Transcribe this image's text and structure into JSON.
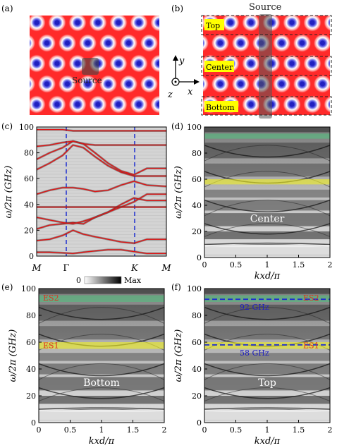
{
  "panel_labels": [
    "(a)",
    "(b)",
    "(c)",
    "(d)",
    "(e)",
    "(f)"
  ],
  "colors": {
    "lattice_bg": "#ff2a2a",
    "spot_center": "#2b2bd8",
    "band_line": "#e01515",
    "highlight_green": "#55c080",
    "highlight_yellow": "#f0f020",
    "dashed_blue": "#1f2fd0",
    "es_label": "#e03020",
    "freq_label": "#2020c0",
    "region_label_bg": "#ffff00"
  },
  "panel_a": {
    "source_label": "Source"
  },
  "panel_b": {
    "source_label": "Source",
    "regions": [
      "Top",
      "Center",
      "Bottom"
    ],
    "axes": {
      "x": "x",
      "y": "y",
      "z": "z"
    }
  },
  "chart_data": [
    {
      "panel": "(c)",
      "type": "line",
      "ylabel": "ω/2π (GHz)",
      "ylim": [
        0,
        100
      ],
      "yticks": [
        0,
        20,
        40,
        60,
        80,
        100
      ],
      "xticks": [
        "M",
        "Γ",
        "K",
        "M"
      ],
      "colorbar": {
        "min_label": "0",
        "max_label": "Max"
      },
      "symmetry_lines": [
        "Γ",
        "K"
      ],
      "x": [
        0,
        0.1,
        0.2,
        0.28,
        0.36,
        0.45,
        0.55,
        0.65,
        0.75,
        0.85,
        1.0
      ],
      "series": [
        {
          "values": [
            3,
            3,
            2.5,
            2,
            3,
            4,
            5,
            5,
            3.5,
            2,
            2
          ]
        },
        {
          "values": [
            12,
            13,
            16,
            20,
            17,
            15,
            13,
            11,
            10,
            13,
            13
          ]
        },
        {
          "values": [
            21,
            24,
            25,
            26,
            25,
            30,
            34,
            40,
            45,
            43,
            43
          ]
        },
        {
          "values": [
            30,
            28,
            26,
            25,
            27,
            30,
            34,
            38,
            42,
            48,
            48
          ]
        },
        {
          "values": [
            38,
            38,
            38,
            38,
            38,
            38,
            38,
            38,
            38,
            38,
            38
          ]
        },
        {
          "values": [
            48,
            51,
            53,
            53,
            52,
            50,
            51,
            55,
            58,
            55,
            54
          ]
        },
        {
          "values": [
            67,
            72,
            78,
            86,
            84,
            77,
            70,
            65,
            62,
            62,
            62
          ]
        },
        {
          "values": [
            75,
            80,
            84,
            89,
            87,
            80,
            72,
            66,
            63,
            68,
            68
          ]
        },
        {
          "values": [
            85,
            86,
            88,
            89,
            87,
            86,
            86,
            86,
            86,
            86,
            86
          ]
        },
        {
          "values": [
            98,
            98,
            98,
            97,
            97,
            97,
            97,
            97,
            97,
            97,
            97
          ]
        }
      ]
    },
    {
      "panel": "(d)",
      "type": "heatmap",
      "ylabel": "ω/2π (GHz)",
      "xlabel": "kxd/π",
      "xlim": [
        0,
        2
      ],
      "ylim": [
        0,
        100
      ],
      "xticks": [
        "0",
        "0.5",
        "1",
        "1.5",
        "2"
      ],
      "yticks": [
        0,
        20,
        40,
        60,
        80,
        100
      ],
      "region_label": "Center",
      "bands": [
        {
          "color": "green",
          "y": [
            91,
            95
          ]
        },
        {
          "color": "yellow",
          "y": [
            56,
            60
          ]
        }
      ]
    },
    {
      "panel": "(e)",
      "type": "heatmap",
      "ylabel": "ω/2π (GHz)",
      "xlabel": "kxd/π",
      "xlim": [
        0,
        2
      ],
      "ylim": [
        0,
        100
      ],
      "xticks": [
        "0",
        "0.5",
        "1",
        "1.5",
        "2"
      ],
      "yticks": [
        0,
        20,
        40,
        60,
        80,
        100
      ],
      "region_label": "Bottom",
      "edge_states": [
        "ES2",
        "ES1"
      ],
      "bands": [
        {
          "color": "green",
          "y": [
            90,
            95
          ]
        },
        {
          "color": "yellow",
          "y": [
            55,
            60
          ]
        }
      ]
    },
    {
      "panel": "(f)",
      "type": "heatmap",
      "ylabel": "ω/2π (GHz)",
      "xlabel": "kxd/π",
      "xlim": [
        0,
        2
      ],
      "ylim": [
        0,
        100
      ],
      "xticks": [
        "0",
        "0.5",
        "1",
        "1.5",
        "2"
      ],
      "yticks": [
        0,
        20,
        40,
        60,
        80,
        100
      ],
      "region_label": "Top",
      "edge_states": [
        "ES2",
        "ES1"
      ],
      "annotations": [
        {
          "text": "92 GHz",
          "y": 92
        },
        {
          "text": "58 GHz",
          "y": 58
        }
      ],
      "bands": [
        {
          "color": "green",
          "y": [
            90,
            95
          ]
        },
        {
          "color": "yellow",
          "y": [
            55,
            60
          ]
        }
      ]
    }
  ]
}
